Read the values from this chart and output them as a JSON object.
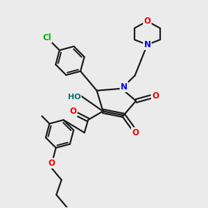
{
  "bg_color": "#ebebeb",
  "bond_color": "#1a1a1a",
  "bond_width": 1.6,
  "atom_colors": {
    "Cl": "#00bb00",
    "N": "#0000ee",
    "O": "#ee0000",
    "HO": "#007070",
    "C": "#1a1a1a"
  },
  "font_size_atoms": 8.5,
  "fig_size": [
    3.0,
    3.0
  ],
  "dpi": 100
}
